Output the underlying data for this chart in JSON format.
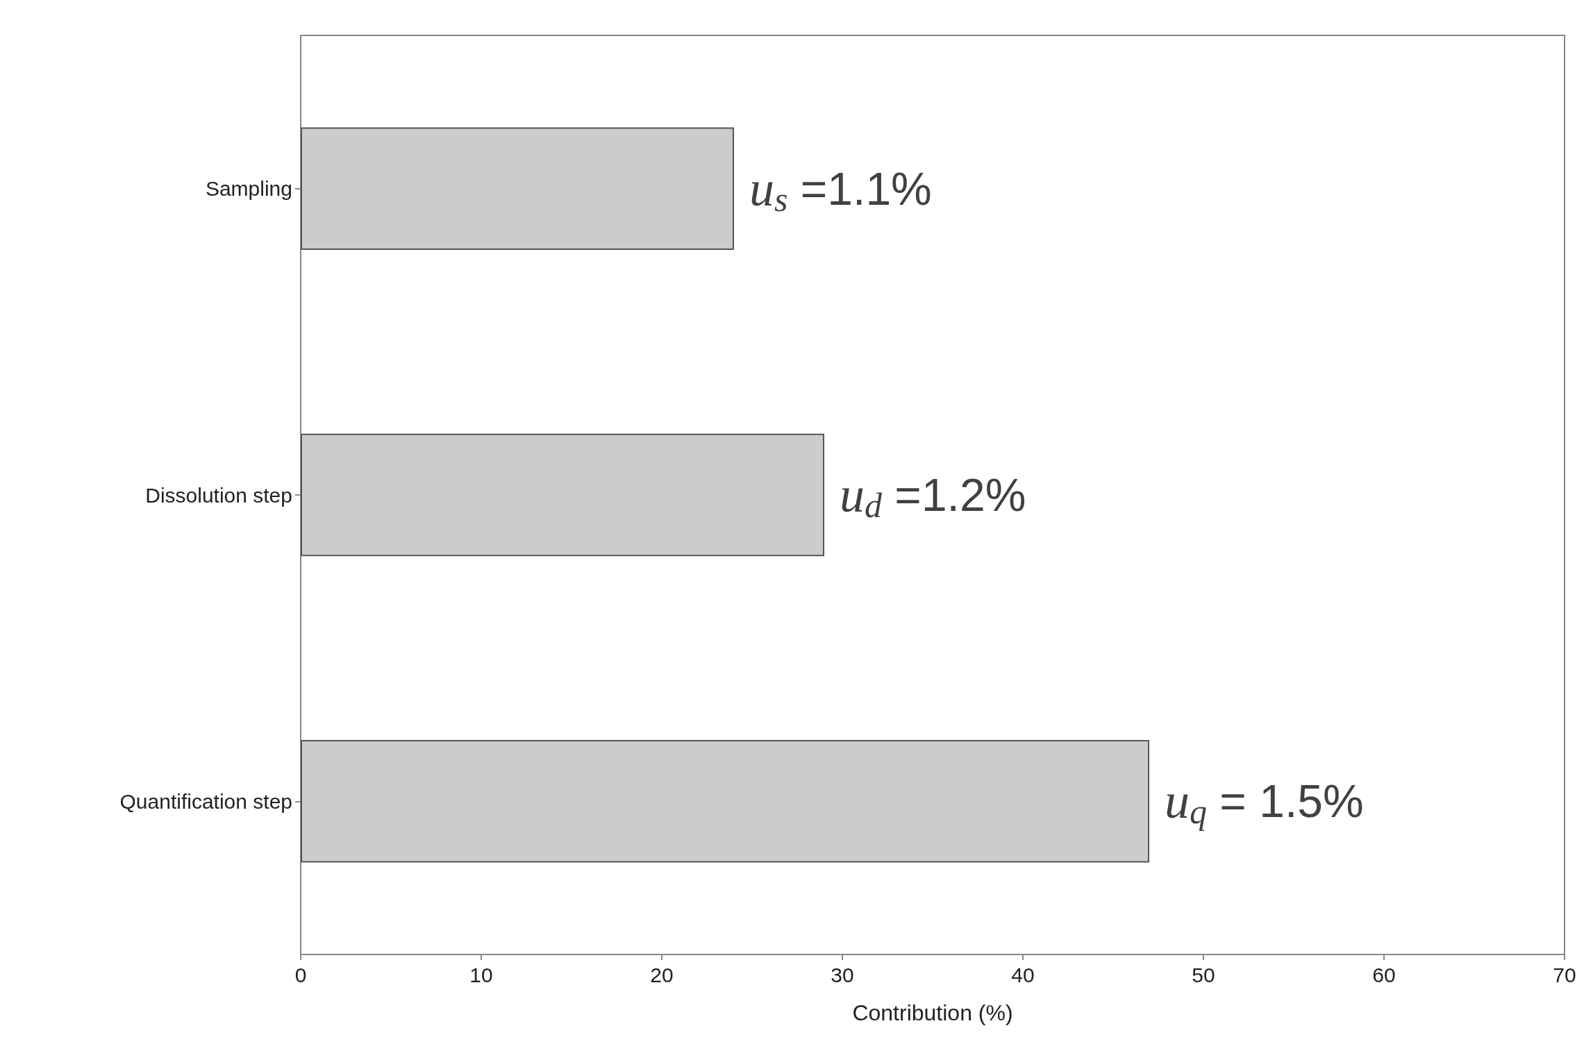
{
  "chart_data": {
    "type": "bar",
    "orientation": "horizontal",
    "categories": [
      "Sampling",
      "Dissolution step",
      "Quantification step"
    ],
    "values": [
      24,
      29,
      47
    ],
    "color": "#cccccc",
    "xlabel": "Contribution (%)",
    "xlim": [
      0,
      70
    ],
    "xticks": [
      0,
      10,
      20,
      30,
      40,
      50,
      60,
      70
    ],
    "grid": false,
    "annotations": [
      {
        "text": "u$_{s}$ =1.1%",
        "x": 24,
        "y": "Sampling"
      },
      {
        "text": "u$_{d}$ =1.2%",
        "x": 29,
        "y": "Dissolution step"
      },
      {
        "text": "u$_{q}$ = 1.5%",
        "x": 47,
        "y": "Quantification step"
      }
    ]
  }
}
